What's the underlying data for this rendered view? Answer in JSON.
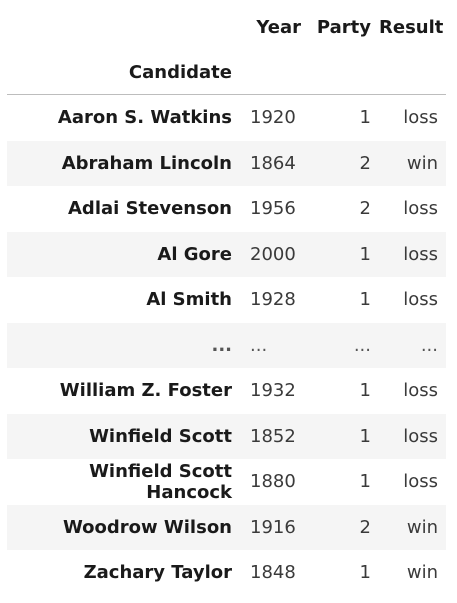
{
  "table": {
    "columns": [
      "Year",
      "Party",
      "Result"
    ],
    "index_name": "Candidate",
    "rows": [
      {
        "candidate": "Aaron S. Watkins",
        "year": "1920",
        "party": "1",
        "result": "loss"
      },
      {
        "candidate": "Abraham Lincoln",
        "year": "1864",
        "party": "2",
        "result": "win"
      },
      {
        "candidate": "Adlai Stevenson",
        "year": "1956",
        "party": "2",
        "result": "loss"
      },
      {
        "candidate": "Al Gore",
        "year": "2000",
        "party": "1",
        "result": "loss"
      },
      {
        "candidate": "Al Smith",
        "year": "1928",
        "party": "1",
        "result": "loss"
      },
      {
        "candidate": "...",
        "year": "...",
        "party": "...",
        "result": "..."
      },
      {
        "candidate": "William Z. Foster",
        "year": "1932",
        "party": "1",
        "result": "loss"
      },
      {
        "candidate": "Winfield Scott",
        "year": "1852",
        "party": "1",
        "result": "loss"
      },
      {
        "candidate": "Winfield Scott Hancock",
        "year": "1880",
        "party": "1",
        "result": "loss"
      },
      {
        "candidate": "Woodrow Wilson",
        "year": "1916",
        "party": "2",
        "result": "win"
      },
      {
        "candidate": "Zachary Taylor",
        "year": "1848",
        "party": "1",
        "result": "win"
      }
    ]
  }
}
